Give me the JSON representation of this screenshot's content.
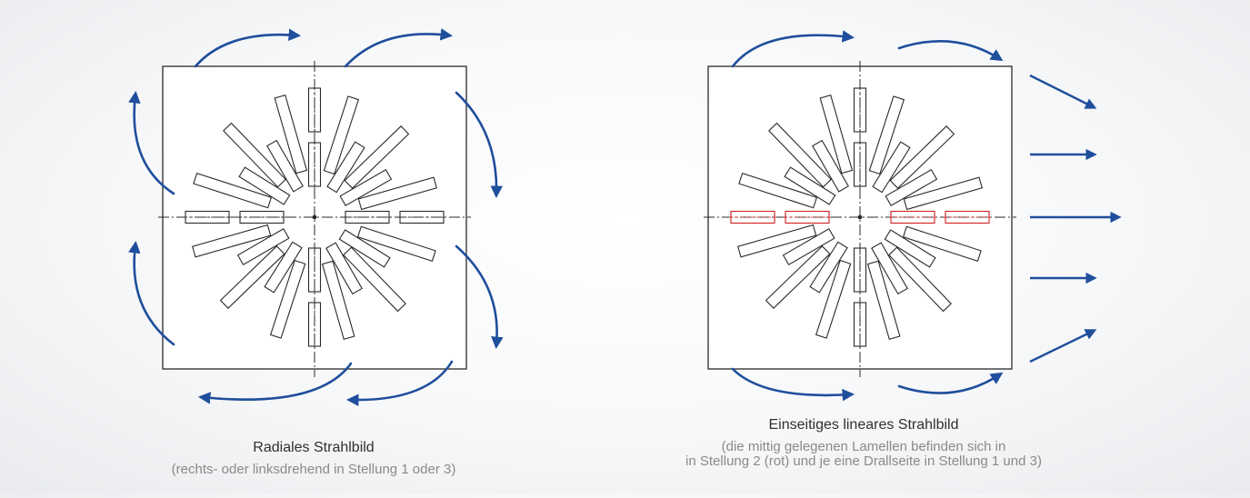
{
  "diagrams": [
    {
      "name": "radial",
      "title": "Radiales Strahlbild",
      "subtitle_lines": [
        "(rechts- oder linksdrehend in Stellung 1 oder 3)"
      ]
    },
    {
      "name": "linear",
      "title": "Einseitiges lineares Strahlbild",
      "subtitle_lines": [
        "(die mittig gelegenen Lamellen befinden sich in",
        "in Stellung 2 (rot) und je eine Drallseite in Stellung 1 und 3)"
      ]
    }
  ],
  "colors": {
    "arrow": "#1f4e9c",
    "outline": "#2a2a2a",
    "highlight": "#d42020",
    "title": "#2f2f2f",
    "subtitle": "#8a8a8a"
  },
  "icons": {
    "arrow": "curved-airflow-arrow-icon",
    "straight_arrow": "straight-airflow-arrow-icon"
  }
}
